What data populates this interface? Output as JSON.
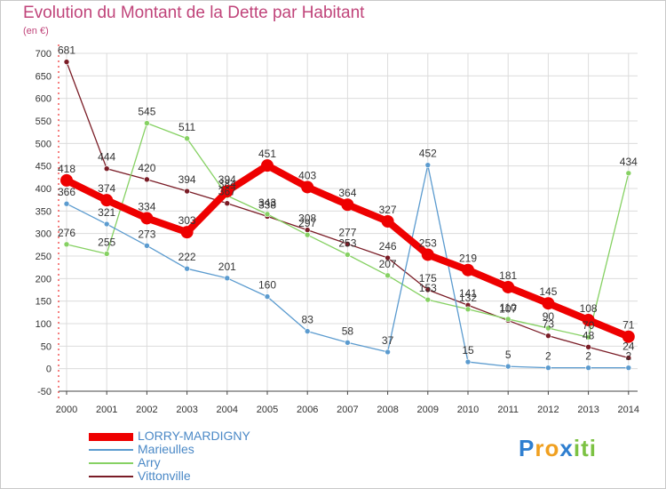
{
  "chart_data": {
    "type": "line",
    "title": "Evolution du Montant de la Dette par Habitant",
    "subtitle": "(en €)",
    "xlabel": "",
    "ylabel": "",
    "ylim": [
      -50,
      700
    ],
    "yticks": [
      -50,
      0,
      50,
      100,
      150,
      200,
      250,
      300,
      350,
      400,
      450,
      500,
      550,
      600,
      650,
      700
    ],
    "x": [
      2000,
      2001,
      2002,
      2003,
      2004,
      2005,
      2006,
      2007,
      2008,
      2009,
      2010,
      2011,
      2012,
      2013,
      2014
    ],
    "grid": true,
    "series": [
      {
        "name": "Vittonville",
        "color": "#7a1c26",
        "values": [
          681,
          444,
          420,
          394,
          367,
          338,
          308,
          277,
          246,
          175,
          141,
          107,
          73,
          48,
          24
        ]
      },
      {
        "name": "Arry",
        "color": "#86d163",
        "values": [
          276,
          255,
          545,
          511,
          384,
          343,
          297,
          253,
          207,
          153,
          132,
          110,
          90,
          70,
          434
        ]
      },
      {
        "name": "Marieulles",
        "color": "#5b9bcf",
        "values": [
          366,
          321,
          273,
          222,
          201,
          160,
          83,
          58,
          37,
          452,
          15,
          5,
          2,
          2,
          2
        ]
      },
      {
        "name": "LORRY-MARDIGNY",
        "color": "#ee0000",
        "values": [
          418,
          374,
          334,
          303,
          394,
          451,
          403,
          364,
          327,
          253,
          219,
          181,
          145,
          108,
          71
        ]
      }
    ],
    "legend": [
      "LORRY-MARDIGNY",
      "Marieulles",
      "Arry",
      "Vittonville"
    ],
    "legend_colors": [
      "#ee0000",
      "#5b9bcf",
      "#86d163",
      "#7a1c26"
    ],
    "legend_position": "bottom-left"
  },
  "logo": {
    "letters": [
      "P",
      "r",
      "o",
      "x",
      "i",
      "t",
      "i"
    ],
    "colors": [
      "#2f7fd0",
      "#f0a020",
      "#f0a020",
      "#2f7fd0",
      "#7cc243",
      "#7cc243",
      "#7cc243"
    ]
  }
}
